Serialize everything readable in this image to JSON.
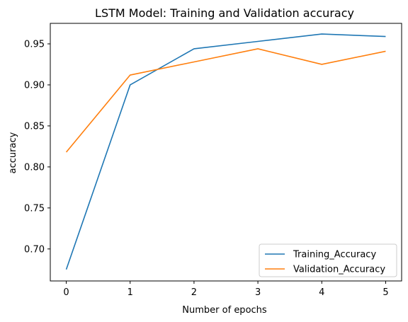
{
  "chart_data": {
    "type": "line",
    "title": "LSTM Model: Training and Validation accuracy",
    "xlabel": "Number of epochs",
    "ylabel": "accuracy",
    "x": [
      0,
      1,
      2,
      3,
      4,
      5
    ],
    "xticks": [
      "0",
      "1",
      "2",
      "3",
      "4",
      "5"
    ],
    "yticks": [
      "0.70",
      "0.75",
      "0.80",
      "0.85",
      "0.90",
      "0.95"
    ],
    "yticks_values": [
      0.7,
      0.75,
      0.8,
      0.85,
      0.9,
      0.95
    ],
    "xlim": [
      -0.25,
      5.25
    ],
    "ylim": [
      0.661,
      0.975
    ],
    "grid": false,
    "legend_position": "lower-right",
    "series": [
      {
        "name": "Training_Accuracy",
        "color": "#1f77b4",
        "values": [
          0.675,
          0.9,
          0.944,
          0.953,
          0.962,
          0.959
        ]
      },
      {
        "name": "Validation_Accuracy",
        "color": "#ff7f0e",
        "values": [
          0.818,
          0.912,
          0.928,
          0.944,
          0.925,
          0.941
        ]
      }
    ]
  }
}
